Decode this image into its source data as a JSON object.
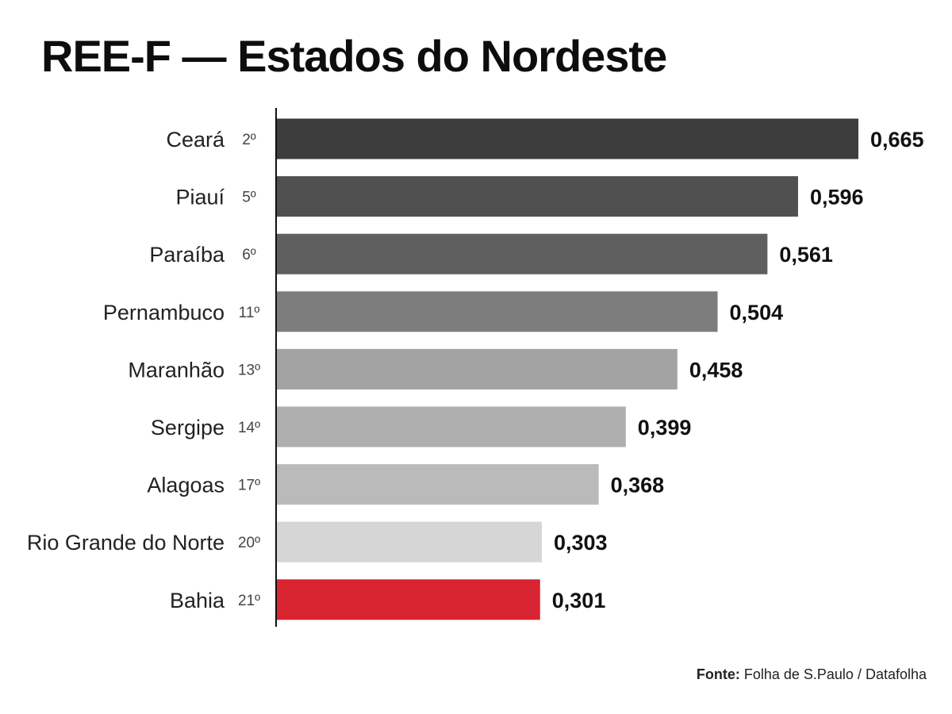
{
  "chart_data": {
    "type": "bar",
    "orientation": "horizontal",
    "title": "REE-F — Estados do Nordeste",
    "categories": [
      "Ceará",
      "Piauí",
      "Paraíba",
      "Pernambuco",
      "Maranhão",
      "Sergipe",
      "Alagoas",
      "Rio Grande do Norte",
      "Bahia"
    ],
    "ranks": [
      "2º",
      "5º",
      "6º",
      "11º",
      "13º",
      "14º",
      "17º",
      "20º",
      "21º"
    ],
    "values": [
      0.665,
      0.596,
      0.561,
      0.504,
      0.458,
      0.399,
      0.368,
      0.303,
      0.301
    ],
    "value_labels": [
      "0,665",
      "0,596",
      "0,561",
      "0,504",
      "0,458",
      "0,399",
      "0,368",
      "0,303",
      "0,301"
    ],
    "bar_colors": [
      "#3d3d3d",
      "#505050",
      "#5f5f5f",
      "#7d7d7d",
      "#a3a3a3",
      "#afafaf",
      "#bababa",
      "#d6d6d6",
      "#d92432"
    ],
    "xlim": [
      0,
      0.665
    ],
    "grid": false,
    "legend": "none"
  },
  "source": {
    "label": "Fonte:",
    "text": "Folha de S.Paulo / Datafolha"
  }
}
